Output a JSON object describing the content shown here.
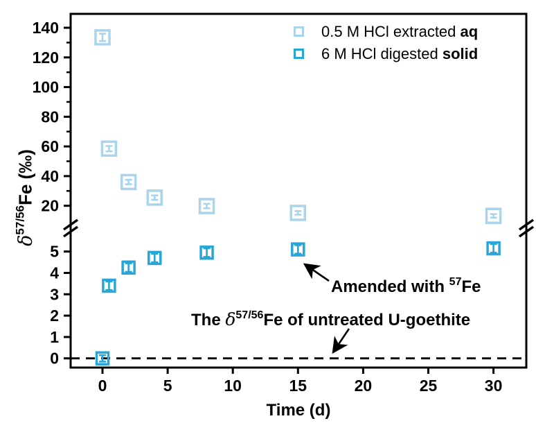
{
  "chart_data": {
    "type": "scatter",
    "title": "",
    "xlabel": "Time (d)",
    "ylabel": "delta 57/56 Fe (permil)",
    "x_ticks": [
      0,
      5,
      10,
      15,
      20,
      25,
      30
    ],
    "x_range": [
      -2.4,
      32.5
    ],
    "y_axis_broken": true,
    "y_upper_ticks": [
      140,
      120,
      100,
      80,
      60,
      40,
      20
    ],
    "y_upper_minor_ticks": [
      130,
      110,
      90,
      70,
      50,
      30
    ],
    "y_lower_ticks": [
      5,
      4,
      3,
      2,
      1,
      0
    ],
    "grid": false,
    "legend_position": "top-right-inside",
    "x": [
      0,
      0.5,
      2,
      4,
      8,
      15,
      30
    ],
    "series": [
      {
        "name": "0.5 M HCl extracted aq",
        "region": "upper",
        "color": "#a9d4ea",
        "marker": "open-square",
        "marker_size": 20,
        "values": [
          133.5,
          58.5,
          36,
          25.5,
          19.8,
          15.2,
          13.2
        ],
        "errors": [
          2.5,
          1.8,
          1.5,
          1.5,
          1.5,
          1.2,
          1.2
        ]
      },
      {
        "name": "6 M HCl digested solid",
        "region": "lower",
        "color": "#27a6d7",
        "marker": "open-square",
        "marker_size": 17,
        "values": [
          0,
          3.4,
          4.25,
          4.7,
          4.95,
          5.1,
          5.15
        ],
        "errors": [
          0.15,
          0.2,
          0.2,
          0.2,
          0.2,
          0.2,
          0.2
        ]
      }
    ],
    "reference_line": {
      "value": 0,
      "region": "lower",
      "style": "dashed",
      "color": "#000000"
    }
  },
  "axis_titles": {
    "x": "Time (d)",
    "y_delta": "δ",
    "y_sup": "57/56",
    "y_main": "Fe (‰)"
  },
  "legend": {
    "items": [
      {
        "prefix": "0.5 M HCl extracted ",
        "bold": "aq",
        "color": "#a9d4ea"
      },
      {
        "prefix": "6 M HCl digested ",
        "bold": "solid",
        "color": "#27a6d7"
      }
    ]
  },
  "annotations": {
    "amended": {
      "prefix": "Amended with ",
      "sup": "57",
      "suffix": "Fe"
    },
    "untreated": {
      "prefix": "The ",
      "delta": "δ",
      "sup": "57/56",
      "suffix": "Fe of untreated U-goethite"
    }
  }
}
